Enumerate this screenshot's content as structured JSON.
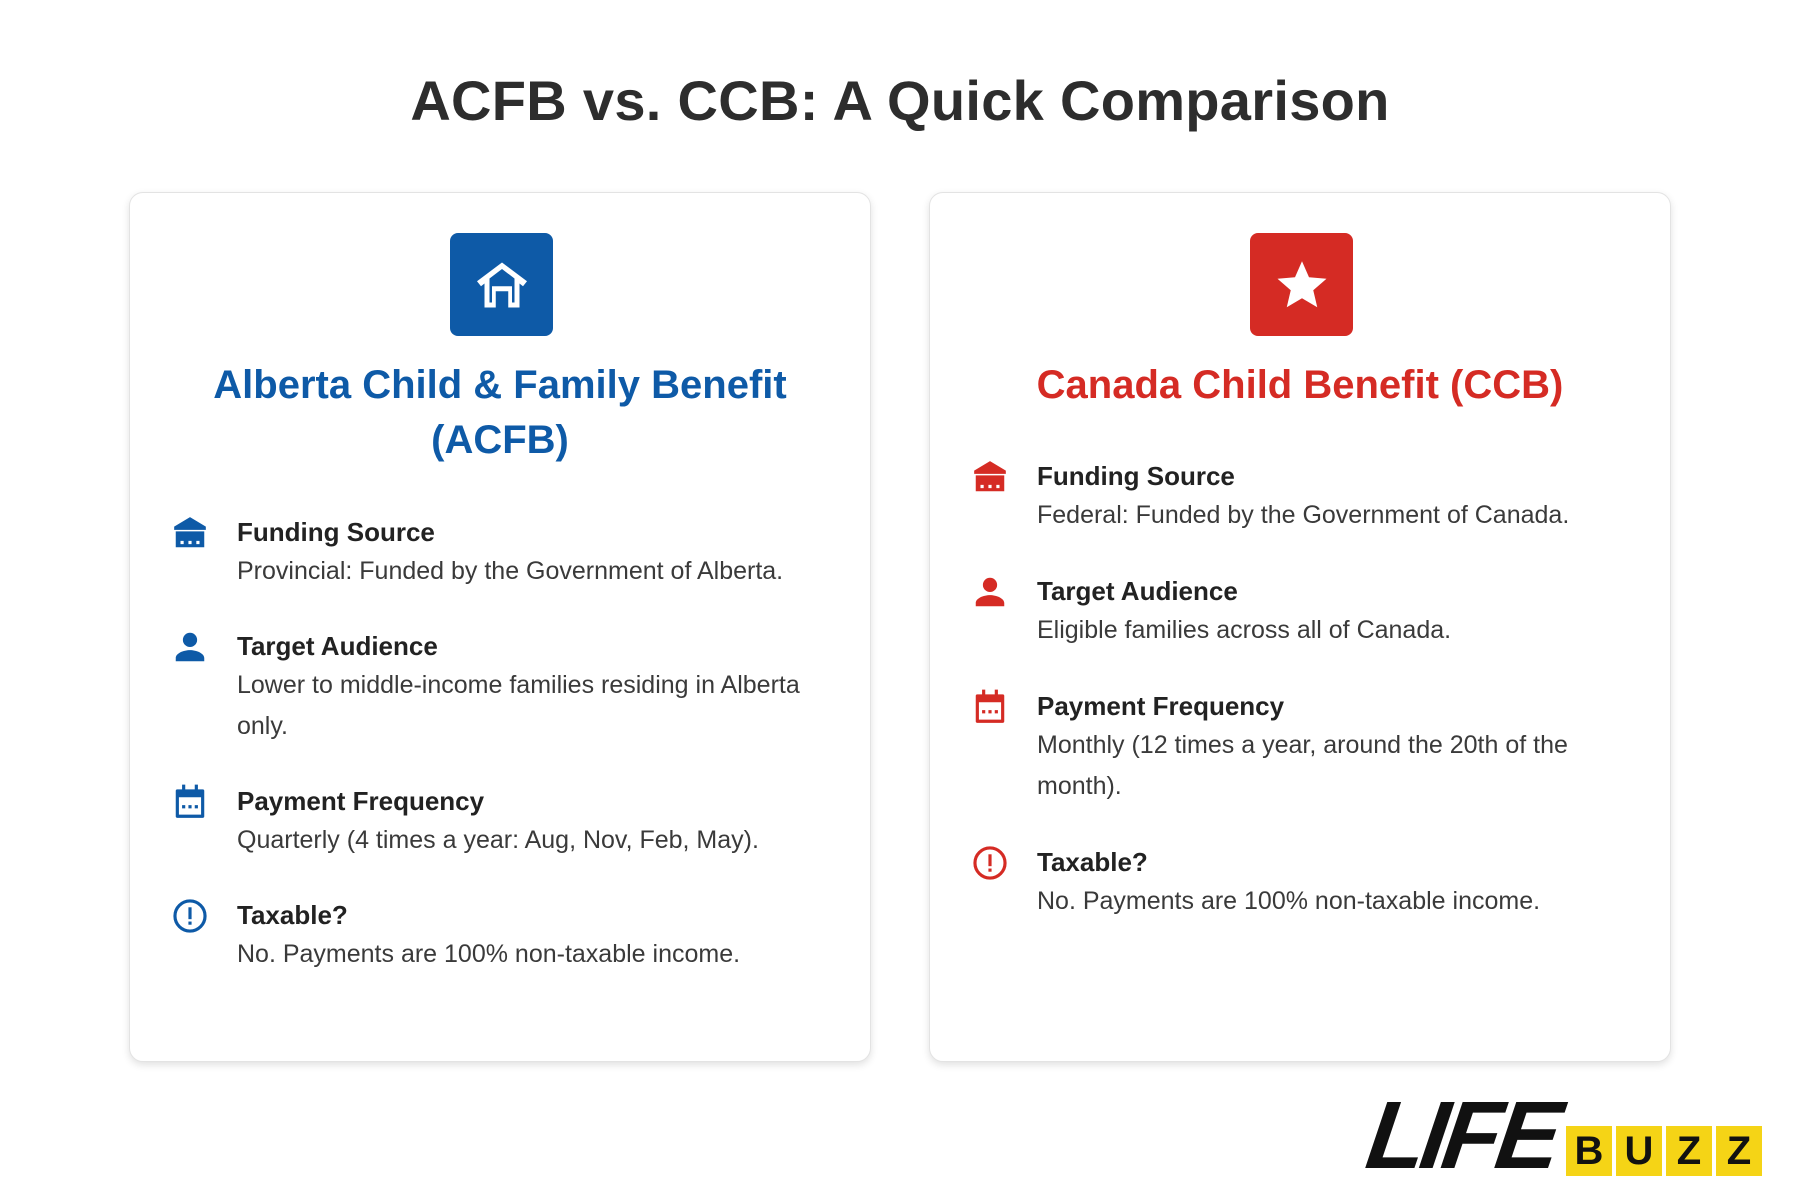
{
  "title": "ACFB vs. CCB: A Quick Comparison",
  "colors": {
    "acfb": "#0e5aa7",
    "ccb": "#d52b24",
    "logo_yellow": "#f5d416"
  },
  "cards": {
    "acfb": {
      "badge_icon": "house-icon",
      "title": "Alberta Child & Family Benefit (ACFB)",
      "rows": [
        {
          "icon": "building-icon",
          "heading": "Funding Source",
          "text": "Provincial: Funded by the Government of Alberta."
        },
        {
          "icon": "person-icon",
          "heading": "Target Audience",
          "text": "Lower to middle-income families residing in Alberta only."
        },
        {
          "icon": "calendar-icon",
          "heading": "Payment Frequency",
          "text": "Quarterly (4 times a year: Aug, Nov, Feb, May)."
        },
        {
          "icon": "alert-circle-icon",
          "heading": "Taxable?",
          "text": "No. Payments are 100% non-taxable income."
        }
      ]
    },
    "ccb": {
      "badge_icon": "star-icon",
      "title": "Canada Child Benefit (CCB)",
      "rows": [
        {
          "icon": "building-icon",
          "heading": "Funding Source",
          "text": "Federal: Funded by the Government of Canada."
        },
        {
          "icon": "person-icon",
          "heading": "Target Audience",
          "text": "Eligible families across all of Canada."
        },
        {
          "icon": "calendar-icon",
          "heading": "Payment Frequency",
          "text": "Monthly (12 times a year, around the 20th of the month)."
        },
        {
          "icon": "alert-circle-icon",
          "heading": "Taxable?",
          "text": "No. Payments are 100% non-taxable income."
        }
      ]
    }
  },
  "logo": {
    "word": "LIFE",
    "letters": [
      "B",
      "U",
      "Z",
      "Z"
    ]
  }
}
